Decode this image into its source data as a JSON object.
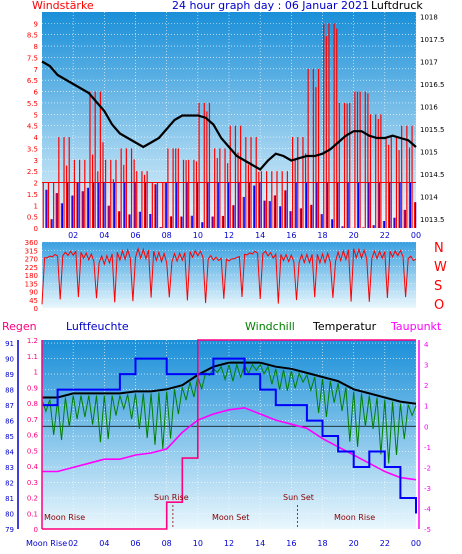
{
  "header": {
    "left_label": "Windstärke",
    "title": "24 hour graph day : 06 Januar 2021",
    "right_label": "Luftdruck"
  },
  "direction_labels": [
    "N",
    "W",
    "S",
    "O",
    "N"
  ],
  "bottom_header": {
    "regen": "Regen",
    "luftfeuchte": "Luftfeuchte",
    "windchill": "Windchill",
    "temperatur": "Temperatur",
    "taupunkt": "Taupunkt"
  },
  "astro_labels": {
    "moon_rise_left": "Moon Rise",
    "sun_rise": "Sun Rise",
    "moon_set": "Moon Set",
    "sun_set": "Sun Set",
    "moon_rise_right": "Moon Rise",
    "moon_rise_axis": "Moon Rise"
  },
  "colors": {
    "wind": "#ff0000",
    "gust_low": "#0000ff",
    "pressure": "#000000",
    "humidity": "#0000ff",
    "windchill": "#008000",
    "temperature": "#000000",
    "dewpoint": "#ff00ff",
    "rain": "#ff007f",
    "grid": "#ffffff",
    "panel_top": "#1a8fd8",
    "panel_bottom": "#e8f6fd"
  },
  "chart_data": [
    {
      "type": "bar",
      "name": "wind-pressure",
      "x_ticks": [
        "02",
        "04",
        "06",
        "08",
        "10",
        "12",
        "14",
        "16",
        "18",
        "20",
        "22",
        "00"
      ],
      "y_left_ticks": [
        "0",
        "0.5",
        "1",
        "1.5",
        "2",
        "2.5",
        "3",
        "3.5",
        "4",
        "4.5",
        "5",
        "5.5",
        "6",
        "6.5",
        "7",
        "7.5",
        "8",
        "8.5",
        "9"
      ],
      "y_left_range": [
        0,
        9.5
      ],
      "y_right_ticks": [
        "1013.5",
        "1014",
        "1014.5",
        "1015",
        "1015.5",
        "1016",
        "1016.5",
        "1017",
        "1017.5",
        "1018"
      ],
      "y_right_range": [
        1013.3,
        1018.1
      ],
      "pressure": {
        "x": [
          0,
          0.5,
          1,
          1.5,
          2,
          2.5,
          3,
          3.5,
          4,
          4.5,
          5,
          5.5,
          6,
          6.5,
          7,
          7.5,
          8,
          8.5,
          9,
          9.5,
          10,
          10.5,
          11,
          11.5,
          12,
          12.5,
          13,
          13.5,
          14,
          14.5,
          15,
          15.5,
          16,
          16.5,
          17,
          17.5,
          18,
          18.5,
          19,
          19.5,
          20,
          20.5,
          21,
          21.5,
          22,
          22.5,
          23,
          23.5,
          24
        ],
        "values": [
          1017.0,
          1016.9,
          1016.7,
          1016.6,
          1016.5,
          1016.4,
          1016.3,
          1016.1,
          1015.9,
          1015.6,
          1015.4,
          1015.3,
          1015.2,
          1015.1,
          1015.2,
          1015.3,
          1015.5,
          1015.7,
          1015.8,
          1015.8,
          1015.8,
          1015.75,
          1015.6,
          1015.3,
          1015.1,
          1014.9,
          1014.8,
          1014.7,
          1014.6,
          1014.8,
          1014.95,
          1014.9,
          1014.8,
          1014.85,
          1014.9,
          1014.9,
          1014.95,
          1015.05,
          1015.2,
          1015.35,
          1015.45,
          1015.45,
          1015.35,
          1015.3,
          1015.3,
          1015.35,
          1015.3,
          1015.25,
          1015.1
        ]
      },
      "wind_hours": [
        0,
        1,
        2,
        3,
        4,
        5,
        6,
        7,
        8,
        9,
        10,
        11,
        12,
        13,
        14,
        15,
        16,
        17,
        18,
        19,
        20,
        21,
        22,
        23
      ],
      "wind_max": [
        2,
        4,
        3,
        6,
        3,
        3.5,
        2.5,
        2,
        3.5,
        3,
        5.5,
        3.5,
        4.5,
        4,
        2.5,
        2.5,
        4,
        7,
        9,
        5.5,
        6,
        5,
        4,
        4.5
      ],
      "wind_min": [
        0,
        0,
        0.5,
        0,
        0,
        0,
        0.5,
        0,
        0.5,
        0.5,
        0,
        0,
        0,
        0.5,
        0,
        0,
        0,
        0,
        0,
        0,
        0,
        0,
        0,
        0
      ]
    },
    {
      "type": "line",
      "name": "wind-direction",
      "y_ticks": [
        "0",
        "45",
        "90",
        "135",
        "180",
        "225",
        "270",
        "315",
        "360"
      ],
      "y_range": [
        0,
        360
      ],
      "hours": [
        0,
        1,
        2,
        3,
        4,
        5,
        6,
        7,
        8,
        9,
        10,
        11,
        12,
        13,
        14,
        15,
        16,
        17,
        18,
        19,
        20,
        21,
        22,
        23,
        24
      ],
      "values": [
        270,
        290,
        300,
        280,
        260,
        285,
        300,
        290,
        270,
        280,
        300,
        270,
        260,
        290,
        310,
        280,
        270,
        270,
        270,
        280,
        300,
        290,
        290,
        300,
        260
      ]
    },
    {
      "type": "line",
      "name": "humidity-temperature",
      "x_ticks": [
        "02",
        "04",
        "06",
        "08",
        "10",
        "12",
        "14",
        "16",
        "18",
        "20",
        "22",
        "00"
      ],
      "y_rain_ticks": [
        "0",
        "0.1",
        "0.2",
        "0.3",
        "0.4",
        "0.5",
        "0.6",
        "0.7",
        "0.8",
        "0.9",
        "1",
        "1.1",
        "1.2"
      ],
      "y_humidity_ticks": [
        "79",
        "80",
        "81",
        "82",
        "83",
        "84",
        "85",
        "86",
        "87",
        "88",
        "89",
        "90",
        "91"
      ],
      "y_temp_ticks": [
        "-5",
        "-4",
        "-3",
        "-2",
        "-1",
        "0",
        "1",
        "2",
        "3",
        "4"
      ],
      "y_temp_range": [
        -5,
        4.2
      ],
      "y_humidity_range": [
        79,
        91.2
      ],
      "hours": [
        0,
        1,
        2,
        3,
        4,
        5,
        6,
        7,
        8,
        9,
        10,
        11,
        12,
        13,
        14,
        15,
        16,
        17,
        18,
        19,
        20,
        21,
        22,
        23,
        24
      ],
      "temperature": [
        1.4,
        1.4,
        1.6,
        1.6,
        1.6,
        1.6,
        1.7,
        1.7,
        1.8,
        2.0,
        2.5,
        2.9,
        3.1,
        3.1,
        3.1,
        2.9,
        2.8,
        2.6,
        2.4,
        2.2,
        1.8,
        1.6,
        1.4,
        1.2,
        1.1
      ],
      "windchill": [
        1.3,
        -1.0,
        0.3,
        0.5,
        -1.2,
        1.1,
        0.1,
        -0.8,
        -1.2,
        1.2,
        1.5,
        2.8,
        2.1,
        2.5,
        2.8,
        1.8,
        1.7,
        2.3,
        0.1,
        1.5,
        -1.5,
        0.5,
        -2.0,
        -1.2,
        1.1
      ],
      "dewpoint": [
        -2.2,
        -2.2,
        -2.0,
        -1.8,
        -1.6,
        -1.6,
        -1.4,
        -1.3,
        -1.1,
        -0.3,
        0.3,
        0.6,
        0.8,
        0.9,
        0.6,
        0.3,
        0.1,
        -0.1,
        -0.6,
        -1.0,
        -1.4,
        -1.8,
        -2.2,
        -2.5,
        -2.6
      ],
      "humidity": [
        87,
        88,
        88,
        88,
        88,
        89,
        90,
        90,
        89,
        89,
        89,
        90,
        90,
        89,
        88,
        87,
        87,
        86,
        85,
        84,
        83,
        84,
        83,
        81,
        80
      ],
      "rain": [
        0,
        0,
        0,
        0,
        0,
        0,
        0,
        0,
        0.17,
        0.45,
        1.2,
        1.2,
        1.2,
        1.2,
        1.2,
        1.2,
        1.2,
        1.2,
        1.2,
        1.2,
        1.2,
        1.2,
        1.2,
        1.2,
        1.2
      ]
    }
  ]
}
